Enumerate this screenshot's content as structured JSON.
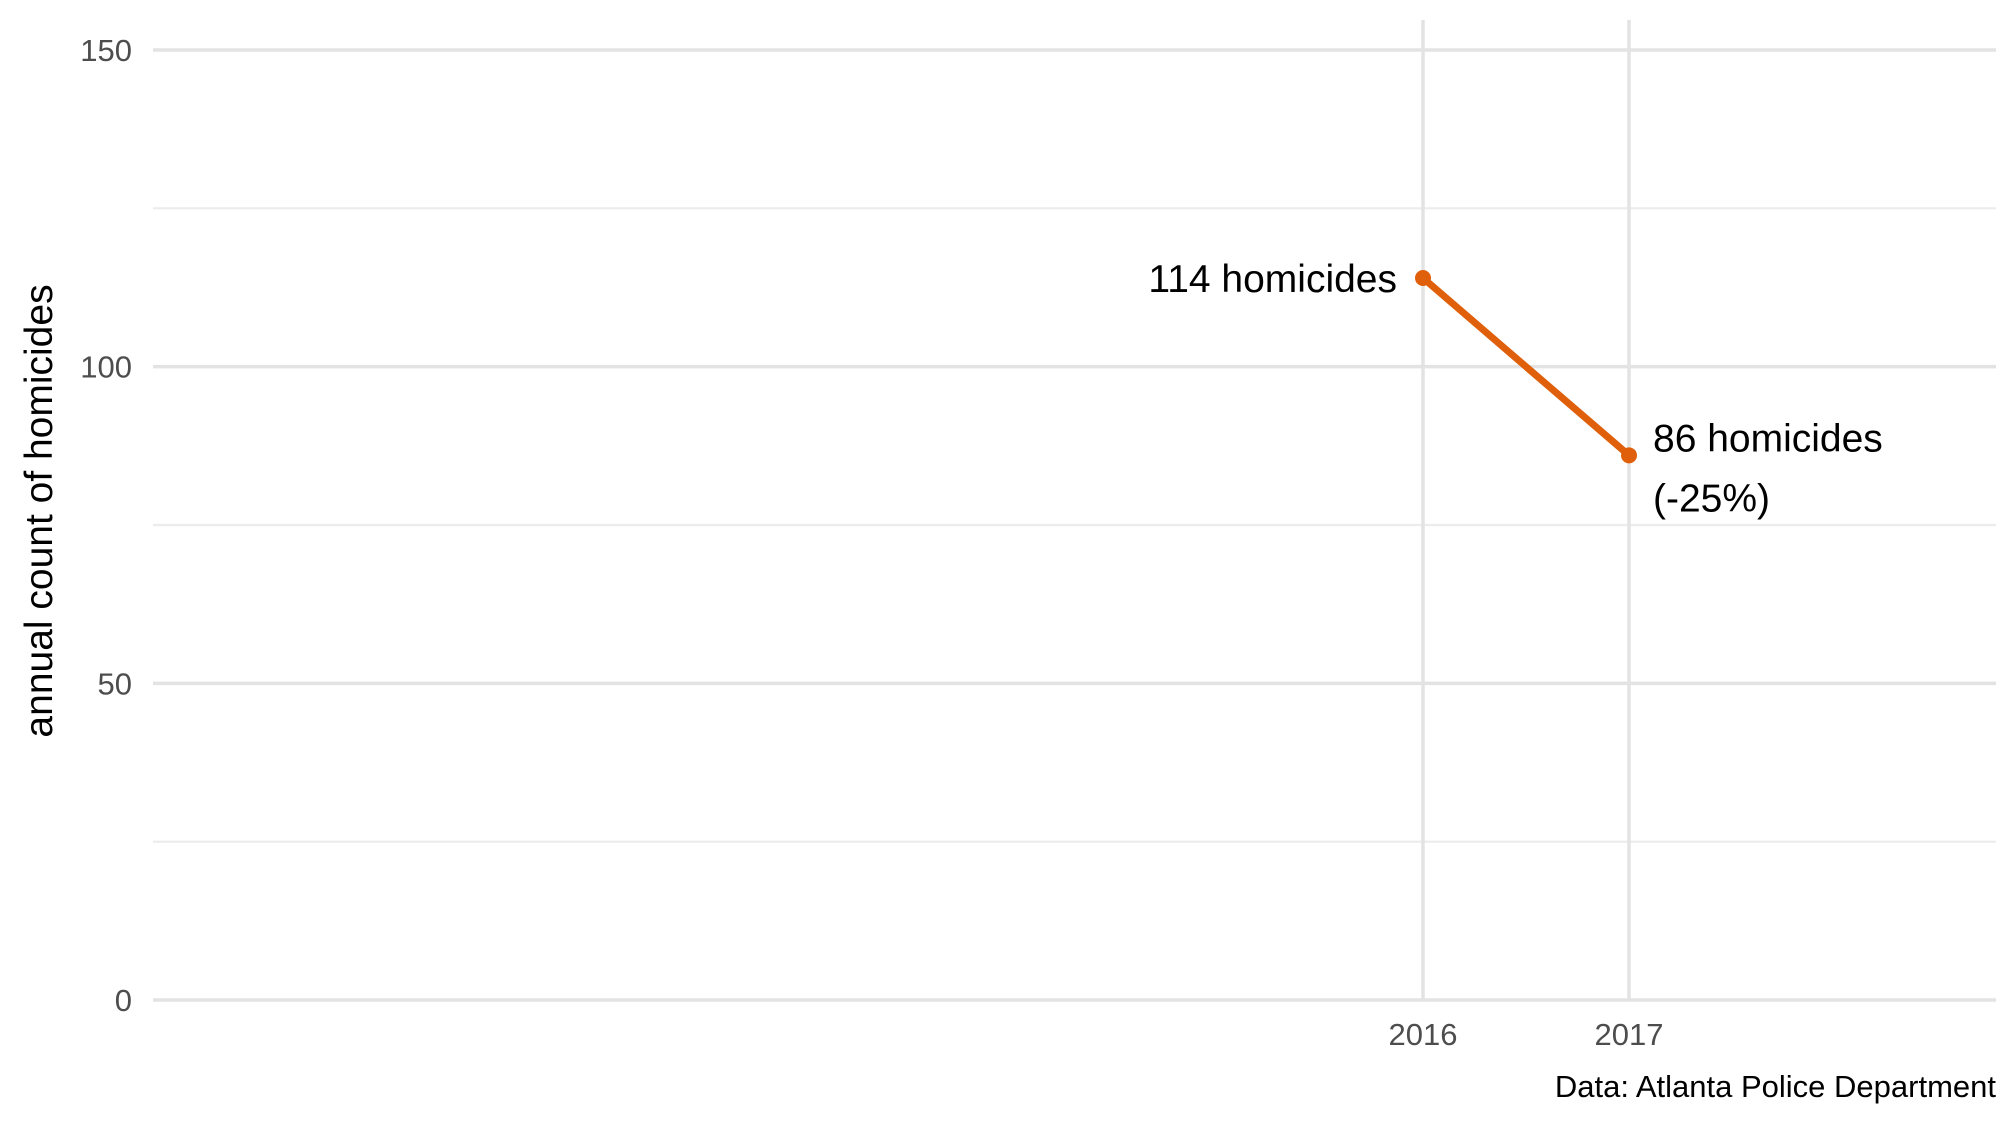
{
  "chart_data": {
    "type": "line",
    "title": "",
    "xlabel": "",
    "ylabel": "annual count of homicides",
    "x": [
      2016,
      2017
    ],
    "series": [
      {
        "values": [
          114,
          86
        ],
        "color": "#e05f0a"
      }
    ],
    "xticks": [
      "2016",
      "2017"
    ],
    "yticks": [
      "0",
      "50",
      "100",
      "150"
    ],
    "ylim": [
      0,
      150
    ],
    "grid": true,
    "annotations": [
      {
        "lines": [
          "114 homicides"
        ]
      },
      {
        "lines": [
          "86 homicides",
          "(-25%)"
        ]
      }
    ],
    "caption": "Data: Atlanta Police Department"
  }
}
